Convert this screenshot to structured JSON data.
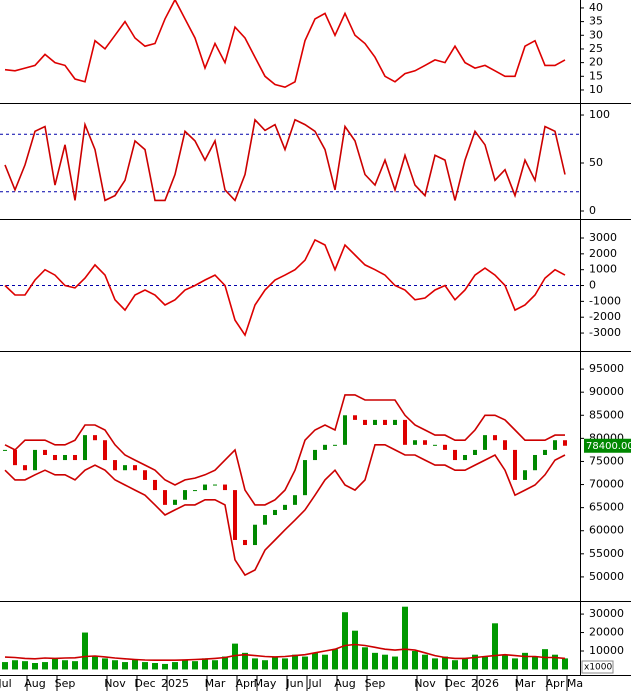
{
  "chart_data": [
    {
      "type": "line",
      "ylim": [
        5.6,
        42.9
      ],
      "yticks": [
        40,
        35,
        30,
        25,
        20,
        15,
        10
      ],
      "series": [
        {
          "color": "#dd0000",
          "values": [
            17.4,
            17,
            18,
            19,
            23,
            20,
            19,
            14,
            13,
            28,
            25,
            30,
            35,
            29,
            26,
            27,
            36,
            43,
            36,
            29,
            18,
            27,
            20,
            33,
            29,
            22,
            15,
            12,
            11,
            13,
            28,
            36,
            38,
            30,
            38,
            30,
            27,
            22,
            15,
            13,
            16,
            17,
            19,
            21,
            20,
            26,
            20,
            18,
            19,
            17,
            15,
            15,
            26,
            28,
            19,
            19,
            21,
            null
          ]
        }
      ]
    },
    {
      "type": "line",
      "ylim": [
        -7.3,
        109.4
      ],
      "yticks": [
        100,
        50,
        0
      ],
      "hlines": [
        80,
        20
      ],
      "series": [
        {
          "color": "#cc0000",
          "values": [
            48,
            22,
            48,
            83,
            88,
            27,
            69,
            11,
            90,
            64,
            11,
            16,
            32,
            73,
            64,
            11,
            11,
            38,
            83,
            73,
            53,
            73,
            22,
            11,
            38,
            95,
            84,
            90,
            64,
            95,
            90,
            83,
            64,
            22,
            88,
            73,
            38,
            27,
            53,
            22,
            58,
            27,
            16,
            58,
            53,
            11,
            53,
            83,
            69,
            32,
            43,
            16,
            53,
            32,
            88,
            83,
            38,
            null
          ]
        }
      ]
    },
    {
      "type": "line",
      "ylim": [
        -4070,
        4010
      ],
      "yticks": [
        3000,
        2000,
        1000,
        0,
        -1000,
        -2000,
        -3000
      ],
      "hlines": [
        0
      ],
      "series": [
        {
          "color": "#dd0000",
          "values": [
            0,
            -600,
            -600,
            350,
            1000,
            660,
            0,
            -150,
            470,
            1300,
            660,
            -900,
            -1550,
            -600,
            -280,
            -600,
            -1230,
            -900,
            -280,
            0,
            350,
            660,
            0,
            -2180,
            -3130,
            -1230,
            -280,
            350,
            660,
            1000,
            1600,
            2880,
            2560,
            1000,
            2560,
            1930,
            1300,
            1000,
            660,
            0,
            -280,
            -900,
            -790,
            -280,
            0,
            -900,
            -280,
            660,
            1100,
            660,
            0,
            -1550,
            -1230,
            -600,
            470,
            1000,
            660,
            null
          ]
        }
      ]
    },
    {
      "type": "candlestick",
      "ylim": [
        45000,
        98700
      ],
      "yticks": [
        95000,
        90000,
        85000,
        80000,
        75000,
        70000,
        65000,
        60000,
        55000,
        50000
      ],
      "up_color": "#008800",
      "down_color": "#dd0000",
      "last_value": {
        "value": 78400,
        "label": "78400.00"
      },
      "series": [
        {
          "values": [
            77500,
            74200,
            73100,
            77500,
            76400,
            75300,
            76400,
            75300,
            80700,
            79600,
            75300,
            73100,
            74200,
            73100,
            71000,
            68800,
            65600,
            66700,
            68800,
            68800,
            70000,
            70000,
            68800,
            58000,
            56900,
            61300,
            63400,
            64500,
            65600,
            67700,
            75300,
            77500,
            78600,
            78600,
            85000,
            84000,
            82900,
            84000,
            82900,
            84000,
            78600,
            79600,
            78600,
            78600,
            77500,
            75300,
            76400,
            77500,
            80700,
            79600,
            77500,
            71000,
            73100,
            76400,
            77500,
            79600,
            78400,
            null
          ]
        },
        {
          "color": "#cc0000",
          "values": [
            78600,
            77500,
            79600,
            79600,
            79600,
            78600,
            78600,
            79600,
            82900,
            82900,
            81800,
            78600,
            76400,
            75300,
            74200,
            73100,
            71000,
            69900,
            71000,
            71400,
            72100,
            73100,
            75300,
            77500,
            68800,
            65600,
            65600,
            66700,
            68800,
            73100,
            79600,
            81800,
            82900,
            81800,
            89400,
            89400,
            88300,
            88300,
            88300,
            88300,
            85000,
            82900,
            81800,
            80700,
            80700,
            79600,
            79600,
            81800,
            85000,
            85000,
            84000,
            81800,
            79600,
            79600,
            79600,
            80700,
            80700,
            null
          ]
        },
        {
          "color": "#cc0000",
          "values": [
            73100,
            71000,
            71000,
            72100,
            73100,
            72100,
            72100,
            71000,
            73100,
            74200,
            73100,
            71000,
            69900,
            68800,
            67700,
            65600,
            63400,
            64500,
            65600,
            65600,
            66700,
            66700,
            65600,
            53700,
            50400,
            51500,
            55800,
            58000,
            60200,
            62300,
            64500,
            67700,
            71000,
            73100,
            69900,
            68800,
            71000,
            78600,
            78600,
            77500,
            76400,
            76400,
            75300,
            74200,
            74200,
            73100,
            73100,
            74200,
            75300,
            76400,
            73100,
            67700,
            68800,
            69900,
            72100,
            75300,
            76400,
            null
          ]
        }
      ]
    },
    {
      "type": "bar",
      "ylim": [
        -3000,
        36000
      ],
      "yticks": [
        30000,
        20000,
        10000
      ],
      "unit_label": "x1000",
      "categories": [
        "Jul",
        null,
        null,
        "Aug",
        null,
        null,
        "Sep",
        null,
        null,
        null,
        null,
        "Nov",
        null,
        null,
        "Dec",
        null,
        null,
        "2025",
        null,
        null,
        null,
        "Mar",
        null,
        null,
        "Apr",
        null,
        "May",
        null,
        null,
        "Jun",
        null,
        "Jul",
        null,
        null,
        "Aug",
        null,
        null,
        "Sep",
        null,
        null,
        null,
        null,
        "Nov",
        null,
        null,
        "Dec",
        null,
        null,
        "2026",
        null,
        null,
        null,
        "Mar",
        null,
        null,
        "Apr",
        null,
        "Ma"
      ],
      "series": [
        {
          "color": "#009900",
          "values": [
            4000,
            5000,
            4500,
            3500,
            4000,
            6000,
            5000,
            4500,
            20000,
            7000,
            6000,
            5000,
            4000,
            5500,
            4000,
            3500,
            3000,
            4000,
            5000,
            4500,
            6000,
            5000,
            7000,
            14000,
            9000,
            6000,
            5000,
            7000,
            6000,
            8000,
            7000,
            9000,
            8000,
            11000,
            31000,
            21000,
            12000,
            9000,
            8000,
            7000,
            34000,
            10000,
            8000,
            6000,
            7000,
            5000,
            6000,
            8000,
            7000,
            25000,
            8000,
            6000,
            9000,
            7000,
            11000,
            8000,
            6000,
            null
          ]
        },
        {
          "color": "#cc0000",
          "values": [
            6700,
            6500,
            6000,
            5800,
            6200,
            6000,
            6200,
            6300,
            7000,
            7300,
            6800,
            6200,
            5800,
            5400,
            5100,
            5000,
            5000,
            5000,
            5200,
            5400,
            5600,
            6000,
            6500,
            7500,
            8000,
            7500,
            7000,
            6800,
            7000,
            7500,
            8000,
            9000,
            10000,
            11000,
            13000,
            13500,
            13000,
            12000,
            11000,
            10500,
            11000,
            10500,
            9000,
            7500,
            6500,
            6000,
            6000,
            6500,
            7000,
            7500,
            8000,
            7500,
            7000,
            7000,
            6500,
            6500,
            6000,
            null
          ]
        }
      ]
    }
  ]
}
